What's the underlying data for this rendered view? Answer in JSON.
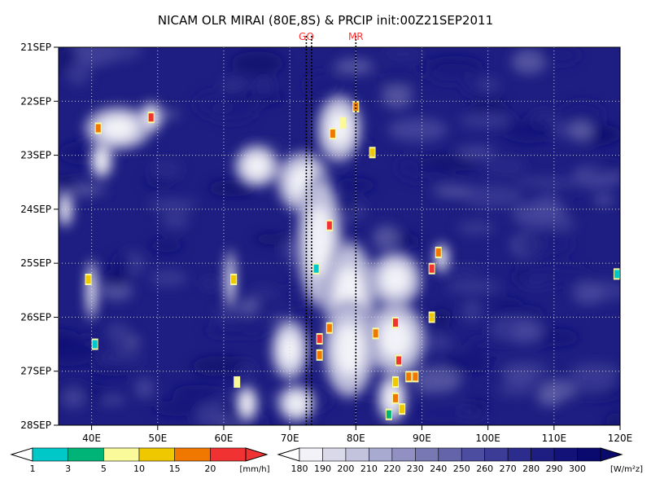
{
  "chart_data": {
    "type": "heatmap",
    "title": "NICAM OLR MIRAI (80E,8S) & PRCIP init:00Z21SEP2011",
    "x_axis": {
      "range": [
        35,
        120
      ],
      "ticks": [
        40,
        50,
        60,
        70,
        80,
        90,
        100,
        110,
        120
      ],
      "tick_labels": [
        "40E",
        "50E",
        "60E",
        "70E",
        "80E",
        "90E",
        "100E",
        "110E",
        "120E"
      ]
    },
    "y_axis": {
      "range": [
        21,
        28
      ],
      "ticks": [
        21,
        22,
        23,
        24,
        25,
        26,
        27,
        28
      ],
      "tick_labels": [
        "21SEP",
        "22SEP",
        "23SEP",
        "24SEP",
        "25SEP",
        "26SEP",
        "27SEP",
        "28SEP"
      ],
      "direction": "time increases downward"
    },
    "grid": true,
    "markers": [
      {
        "label": "GO",
        "x": 72.5,
        "color": "#ff3333"
      },
      {
        "label": "",
        "x": 73.3,
        "color": "#000000"
      },
      {
        "label": "MR",
        "x": 80,
        "color": "#ff3333"
      }
    ],
    "precip_colorbar": {
      "units": "[mm/h]",
      "levels": [
        "1",
        "3",
        "5",
        "10",
        "15",
        "20"
      ],
      "colors": [
        "#00c8c8",
        "#00b478",
        "#fafa9b",
        "#f0c800",
        "#f07800",
        "#f03232"
      ]
    },
    "olr_colorbar": {
      "units": "[W/m²z]",
      "levels": [
        "180",
        "190",
        "200",
        "210",
        "220",
        "230",
        "240",
        "250",
        "260",
        "270",
        "280",
        "290",
        "300"
      ],
      "colors": [
        "#f2f2f8",
        "#d9d9ea",
        "#c3c3de",
        "#a9aad0",
        "#9090c2",
        "#7878b4",
        "#6464aa",
        "#4c4ca0",
        "#3c3c96",
        "#2c2c8c",
        "#1e1e82",
        "#121278",
        "#0a0a6e"
      ]
    },
    "cloud_regions": [
      {
        "x": 44,
        "y": 22.5,
        "rx": 4.5,
        "ry": 0.35
      },
      {
        "x": 41.5,
        "y": 23.1,
        "rx": 1.5,
        "ry": 0.3
      },
      {
        "x": 49,
        "y": 22.3,
        "rx": 1.5,
        "ry": 0.25
      },
      {
        "x": 77.5,
        "y": 22.5,
        "rx": 3,
        "ry": 0.55
      },
      {
        "x": 72,
        "y": 23.5,
        "rx": 3.5,
        "ry": 0.5
      },
      {
        "x": 65,
        "y": 23.2,
        "rx": 3,
        "ry": 0.35
      },
      {
        "x": 74.5,
        "y": 24.6,
        "rx": 3,
        "ry": 1.1
      },
      {
        "x": 79,
        "y": 25.6,
        "rx": 3.5,
        "ry": 0.9
      },
      {
        "x": 86,
        "y": 25.3,
        "rx": 3.5,
        "ry": 0.45
      },
      {
        "x": 86,
        "y": 26.4,
        "rx": 4,
        "ry": 0.6
      },
      {
        "x": 79,
        "y": 26.6,
        "rx": 3.5,
        "ry": 0.8
      },
      {
        "x": 70,
        "y": 26.6,
        "rx": 2.5,
        "ry": 0.5
      },
      {
        "x": 71,
        "y": 27.6,
        "rx": 2.5,
        "ry": 0.3
      },
      {
        "x": 63.5,
        "y": 27.6,
        "rx": 1.5,
        "ry": 0.3
      },
      {
        "x": 85.5,
        "y": 27.5,
        "rx": 2,
        "ry": 0.4
      },
      {
        "x": 36,
        "y": 24,
        "rx": 1,
        "ry": 0.3
      },
      {
        "x": 61,
        "y": 25.3,
        "rx": 0.7,
        "ry": 0.5
      },
      {
        "x": 40,
        "y": 25.5,
        "rx": 0.8,
        "ry": 0.5
      },
      {
        "x": 93,
        "y": 24.9,
        "rx": 1,
        "ry": 0.25
      }
    ],
    "precip_cells": [
      {
        "x": 49,
        "y": 22.3,
        "v": 20
      },
      {
        "x": 41,
        "y": 22.5,
        "v": 15
      },
      {
        "x": 80,
        "y": 22.1,
        "v": 15
      },
      {
        "x": 76.5,
        "y": 22.6,
        "v": 15
      },
      {
        "x": 78,
        "y": 22.4,
        "v": 5
      },
      {
        "x": 82.5,
        "y": 22.95,
        "v": 10
      },
      {
        "x": 76,
        "y": 24.3,
        "v": 20
      },
      {
        "x": 91.5,
        "y": 25.1,
        "v": 20
      },
      {
        "x": 92.5,
        "y": 24.8,
        "v": 15
      },
      {
        "x": 61.5,
        "y": 25.3,
        "v": 10
      },
      {
        "x": 39.5,
        "y": 25.3,
        "v": 10
      },
      {
        "x": 86,
        "y": 26.1,
        "v": 20
      },
      {
        "x": 74.5,
        "y": 26.4,
        "v": 20
      },
      {
        "x": 74.5,
        "y": 26.7,
        "v": 15
      },
      {
        "x": 76,
        "y": 26.2,
        "v": 15
      },
      {
        "x": 83,
        "y": 26.3,
        "v": 15
      },
      {
        "x": 86.5,
        "y": 26.8,
        "v": 20
      },
      {
        "x": 86,
        "y": 27.2,
        "v": 10
      },
      {
        "x": 88,
        "y": 27.1,
        "v": 15
      },
      {
        "x": 86,
        "y": 27.5,
        "v": 15
      },
      {
        "x": 87,
        "y": 27.7,
        "v": 10
      },
      {
        "x": 91.5,
        "y": 26.0,
        "v": 10
      },
      {
        "x": 40.5,
        "y": 26.5,
        "v": 1
      },
      {
        "x": 74,
        "y": 25.1,
        "v": 1
      },
      {
        "x": 89,
        "y": 27.1,
        "v": 15
      },
      {
        "x": 62,
        "y": 27.2,
        "v": 5
      },
      {
        "x": 85,
        "y": 27.8,
        "v": 3
      },
      {
        "x": 119.5,
        "y": 25.2,
        "v": 1
      }
    ]
  }
}
